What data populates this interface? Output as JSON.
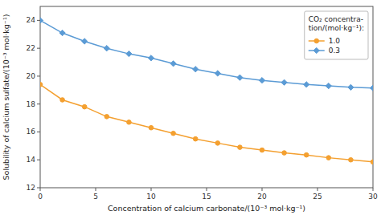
{
  "chart_data": {
    "type": "line",
    "x_label": "Concentration of calcium carbonate/(10⁻³ mol·kg⁻¹)",
    "y_label": "Solubility of calcium sulfate/(10⁻³ mol·kg⁻¹)",
    "legend_title": "CO₂ concentra-\ntion/(mol·kg⁻¹):",
    "x": [
      0,
      2,
      4,
      6,
      8,
      10,
      12,
      14,
      16,
      18,
      20,
      22,
      24,
      26,
      28,
      30
    ],
    "series": [
      {
        "name": "1.0",
        "color": "#F4A030",
        "marker": "circle",
        "values": [
          19.4,
          18.3,
          17.8,
          17.1,
          16.7,
          16.3,
          15.9,
          15.5,
          15.2,
          14.9,
          14.7,
          14.5,
          14.35,
          14.15,
          14.0,
          13.85
        ]
      },
      {
        "name": "0.3",
        "color": "#5B9BD5",
        "marker": "diamond",
        "values": [
          24.0,
          23.1,
          22.5,
          22.0,
          21.6,
          21.3,
          20.9,
          20.5,
          20.2,
          19.9,
          19.7,
          19.55,
          19.4,
          19.3,
          19.2,
          19.15
        ]
      }
    ],
    "xlim": [
      0,
      30
    ],
    "ylim": [
      12,
      25
    ],
    "xticks": [
      0,
      5,
      10,
      15,
      20,
      25,
      30
    ],
    "yticks": [
      12,
      14,
      16,
      18,
      20,
      22,
      24
    ],
    "grid": false,
    "legend": "upper right"
  }
}
